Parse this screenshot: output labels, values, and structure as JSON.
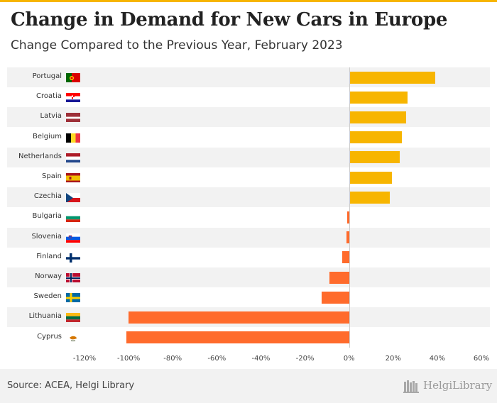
{
  "header": {
    "title": "Change in Demand for New Cars in Europe",
    "subtitle": "Change Compared to the Previous Year, February 2023"
  },
  "footer": {
    "source": "Source: ACEA, Helgi Library",
    "logo_text": "HelgiLibrary"
  },
  "colors": {
    "positive": "#f7b500",
    "negative": "#ff6b2c",
    "accent": "#f7b500",
    "band": "#f2f2f2"
  },
  "chart_data": {
    "type": "bar",
    "orientation": "horizontal",
    "title": "Change in Demand for New Cars in Europe",
    "subtitle": "Change Compared to the Previous Year, February 2023",
    "categories": [
      "Portugal",
      "Croatia",
      "Latvia",
      "Belgium",
      "Netherlands",
      "Spain",
      "Czechia",
      "Bulgaria",
      "Slovenia",
      "Finland",
      "Norway",
      "Sweden",
      "Lithuania",
      "Cyprus"
    ],
    "flag_icons": [
      "portugal-flag-icon",
      "croatia-flag-icon",
      "latvia-flag-icon",
      "belgium-flag-icon",
      "netherlands-flag-icon",
      "spain-flag-icon",
      "czechia-flag-icon",
      "bulgaria-flag-icon",
      "slovenia-flag-icon",
      "finland-flag-icon",
      "norway-flag-icon",
      "sweden-flag-icon",
      "lithuania-flag-icon",
      "cyprus-flag-icon"
    ],
    "values": [
      39,
      26.5,
      26,
      24,
      23,
      19.5,
      18.5,
      -1,
      -1.2,
      -3,
      -9,
      -12.5,
      -100,
      -101
    ],
    "unit": "%",
    "xlim": [
      -120,
      60
    ],
    "xticks": [
      -120,
      -100,
      -80,
      -60,
      -40,
      -20,
      0,
      20,
      40,
      60
    ],
    "xtick_labels": [
      "-120%",
      "-100%",
      "-80%",
      "-60%",
      "-40%",
      "-20%",
      "0%",
      "20%",
      "40%",
      "60%"
    ],
    "grid": false,
    "legend": "none"
  }
}
